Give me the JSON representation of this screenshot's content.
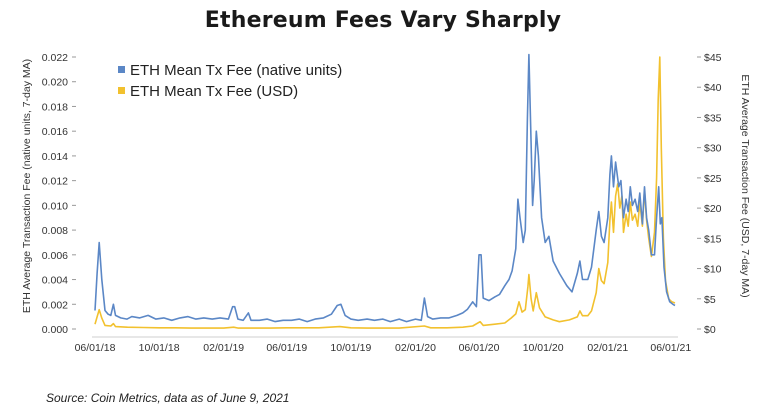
{
  "chart_data": {
    "type": "line",
    "title": "Ethereum Fees Vary Sharply",
    "source": "Source: Coin Metrics, data as of June 9, 2021",
    "x_axis": {
      "type": "date",
      "range": [
        "2018-06-01",
        "2021-06-09"
      ],
      "tick_labels": [
        "06/01/18",
        "10/01/18",
        "02/01/19",
        "06/01/19",
        "10/01/19",
        "02/01/20",
        "06/01/20",
        "10/01/20",
        "02/01/21",
        "06/01/21"
      ],
      "tick_dates": [
        "2018-06-01",
        "2018-10-01",
        "2019-02-01",
        "2019-06-01",
        "2019-10-01",
        "2020-02-01",
        "2020-06-01",
        "2020-10-01",
        "2021-02-01",
        "2021-06-01"
      ]
    },
    "y_left": {
      "label": "ETH Average Transaction Fee (native units, 7-day MA)",
      "range": [
        0,
        0.022
      ],
      "tick_labels": [
        "0.000",
        "0.002",
        "0.004",
        "0.006",
        "0.008",
        "0.010",
        "0.012",
        "0.014",
        "0.016",
        "0.018",
        "0.020",
        "0.022"
      ],
      "tick_values": [
        0,
        0.002,
        0.004,
        0.006,
        0.008,
        0.01,
        0.012,
        0.014,
        0.016,
        0.018,
        0.02,
        0.022
      ]
    },
    "y_right": {
      "label": "ETH Average Transaction Fee (USD, 7-day MA)",
      "range": [
        0,
        45
      ],
      "tick_labels": [
        "$0",
        "$5",
        "$10",
        "$15",
        "$20",
        "$25",
        "$30",
        "$35",
        "$40",
        "$45"
      ],
      "tick_values": [
        0,
        5,
        10,
        15,
        20,
        25,
        30,
        35,
        40,
        45
      ]
    },
    "grid": false,
    "legend_position": "top-left",
    "series": [
      {
        "name": "ETH Mean Tx Fee (native units)",
        "axis": "left",
        "color": "#5b87c6",
        "points": [
          [
            "2018-06-01",
            0.0015
          ],
          [
            "2018-06-05",
            0.0045
          ],
          [
            "2018-06-09",
            0.007
          ],
          [
            "2018-06-14",
            0.004
          ],
          [
            "2018-06-20",
            0.0015
          ],
          [
            "2018-06-26",
            0.0012
          ],
          [
            "2018-07-01",
            0.0011
          ],
          [
            "2018-07-06",
            0.002
          ],
          [
            "2018-07-10",
            0.0011
          ],
          [
            "2018-07-20",
            0.0009
          ],
          [
            "2018-08-01",
            0.0008
          ],
          [
            "2018-08-10",
            0.001
          ],
          [
            "2018-08-25",
            0.0009
          ],
          [
            "2018-09-10",
            0.0011
          ],
          [
            "2018-09-25",
            0.0008
          ],
          [
            "2018-10-10",
            0.0009
          ],
          [
            "2018-10-25",
            0.0007
          ],
          [
            "2018-11-10",
            0.0009
          ],
          [
            "2018-11-25",
            0.001
          ],
          [
            "2018-12-10",
            0.0008
          ],
          [
            "2018-12-25",
            0.0009
          ],
          [
            "2019-01-10",
            0.0008
          ],
          [
            "2019-01-25",
            0.0009
          ],
          [
            "2019-02-10",
            0.0008
          ],
          [
            "2019-02-18",
            0.0018
          ],
          [
            "2019-02-22",
            0.0018
          ],
          [
            "2019-02-28",
            0.0008
          ],
          [
            "2019-03-10",
            0.0007
          ],
          [
            "2019-03-20",
            0.0013
          ],
          [
            "2019-03-25",
            0.0007
          ],
          [
            "2019-04-10",
            0.0007
          ],
          [
            "2019-04-25",
            0.0008
          ],
          [
            "2019-05-10",
            0.0006
          ],
          [
            "2019-05-25",
            0.0007
          ],
          [
            "2019-06-10",
            0.0007
          ],
          [
            "2019-06-25",
            0.0008
          ],
          [
            "2019-07-10",
            0.0006
          ],
          [
            "2019-07-25",
            0.0008
          ],
          [
            "2019-08-10",
            0.0009
          ],
          [
            "2019-08-25",
            0.0012
          ],
          [
            "2019-09-05",
            0.0019
          ],
          [
            "2019-09-12",
            0.002
          ],
          [
            "2019-09-20",
            0.0011
          ],
          [
            "2019-10-01",
            0.0008
          ],
          [
            "2019-10-15",
            0.0007
          ],
          [
            "2019-11-01",
            0.0008
          ],
          [
            "2019-11-15",
            0.0007
          ],
          [
            "2019-12-01",
            0.0008
          ],
          [
            "2019-12-15",
            0.0006
          ],
          [
            "2020-01-01",
            0.0008
          ],
          [
            "2020-01-15",
            0.0006
          ],
          [
            "2020-02-01",
            0.0008
          ],
          [
            "2020-02-12",
            0.0007
          ],
          [
            "2020-02-18",
            0.0025
          ],
          [
            "2020-02-24",
            0.001
          ],
          [
            "2020-03-05",
            0.0008
          ],
          [
            "2020-03-20",
            0.0009
          ],
          [
            "2020-04-05",
            0.0009
          ],
          [
            "2020-04-20",
            0.0011
          ],
          [
            "2020-05-01",
            0.0013
          ],
          [
            "2020-05-10",
            0.0016
          ],
          [
            "2020-05-20",
            0.0022
          ],
          [
            "2020-05-27",
            0.0018
          ],
          [
            "2020-06-01",
            0.006
          ],
          [
            "2020-06-05",
            0.006
          ],
          [
            "2020-06-09",
            0.0025
          ],
          [
            "2020-06-20",
            0.0023
          ],
          [
            "2020-07-01",
            0.0026
          ],
          [
            "2020-07-10",
            0.0028
          ],
          [
            "2020-07-20",
            0.0035
          ],
          [
            "2020-07-28",
            0.004
          ],
          [
            "2020-08-03",
            0.0047
          ],
          [
            "2020-08-10",
            0.0065
          ],
          [
            "2020-08-14",
            0.0105
          ],
          [
            "2020-08-18",
            0.009
          ],
          [
            "2020-08-24",
            0.007
          ],
          [
            "2020-08-28",
            0.008
          ],
          [
            "2020-09-01",
            0.017
          ],
          [
            "2020-09-04",
            0.0222
          ],
          [
            "2020-09-08",
            0.015
          ],
          [
            "2020-09-11",
            0.01
          ],
          [
            "2020-09-14",
            0.012
          ],
          [
            "2020-09-18",
            0.016
          ],
          [
            "2020-09-22",
            0.014
          ],
          [
            "2020-09-28",
            0.009
          ],
          [
            "2020-10-05",
            0.007
          ],
          [
            "2020-10-12",
            0.0075
          ],
          [
            "2020-10-20",
            0.0055
          ],
          [
            "2020-11-01",
            0.0045
          ],
          [
            "2020-11-15",
            0.0035
          ],
          [
            "2020-11-25",
            0.003
          ],
          [
            "2020-12-05",
            0.0045
          ],
          [
            "2020-12-10",
            0.0055
          ],
          [
            "2020-12-15",
            0.004
          ],
          [
            "2020-12-25",
            0.004
          ],
          [
            "2021-01-01",
            0.005
          ],
          [
            "2021-01-10",
            0.008
          ],
          [
            "2021-01-15",
            0.0095
          ],
          [
            "2021-01-20",
            0.0075
          ],
          [
            "2021-01-25",
            0.007
          ],
          [
            "2021-02-01",
            0.009
          ],
          [
            "2021-02-05",
            0.0125
          ],
          [
            "2021-02-08",
            0.014
          ],
          [
            "2021-02-12",
            0.0115
          ],
          [
            "2021-02-16",
            0.0135
          ],
          [
            "2021-02-22",
            0.0115
          ],
          [
            "2021-02-26",
            0.012
          ],
          [
            "2021-03-03",
            0.009
          ],
          [
            "2021-03-08",
            0.0105
          ],
          [
            "2021-03-12",
            0.0095
          ],
          [
            "2021-03-16",
            0.0115
          ],
          [
            "2021-03-20",
            0.01
          ],
          [
            "2021-03-25",
            0.0105
          ],
          [
            "2021-03-30",
            0.0095
          ],
          [
            "2021-04-03",
            0.011
          ],
          [
            "2021-04-08",
            0.0085
          ],
          [
            "2021-04-12",
            0.0115
          ],
          [
            "2021-04-16",
            0.009
          ],
          [
            "2021-04-20",
            0.008
          ],
          [
            "2021-04-25",
            0.006
          ],
          [
            "2021-05-01",
            0.006
          ],
          [
            "2021-05-05",
            0.009
          ],
          [
            "2021-05-09",
            0.0115
          ],
          [
            "2021-05-12",
            0.0085
          ],
          [
            "2021-05-15",
            0.009
          ],
          [
            "2021-05-19",
            0.005
          ],
          [
            "2021-05-24",
            0.003
          ],
          [
            "2021-05-30",
            0.0022
          ],
          [
            "2021-06-05",
            0.002
          ],
          [
            "2021-06-09",
            0.0019
          ]
        ]
      },
      {
        "name": "ETH Mean Tx Fee (USD)",
        "axis": "right",
        "color": "#f2c12e",
        "points": [
          [
            "2018-06-01",
            0.8
          ],
          [
            "2018-06-05",
            2.0
          ],
          [
            "2018-06-09",
            3.2
          ],
          [
            "2018-06-14",
            1.8
          ],
          [
            "2018-06-20",
            0.6
          ],
          [
            "2018-07-01",
            0.5
          ],
          [
            "2018-07-06",
            0.9
          ],
          [
            "2018-07-10",
            0.4
          ],
          [
            "2018-08-01",
            0.3
          ],
          [
            "2018-09-01",
            0.25
          ],
          [
            "2018-10-01",
            0.2
          ],
          [
            "2018-11-01",
            0.2
          ],
          [
            "2018-12-01",
            0.15
          ],
          [
            "2019-01-01",
            0.15
          ],
          [
            "2019-02-01",
            0.15
          ],
          [
            "2019-02-20",
            0.3
          ],
          [
            "2019-03-01",
            0.15
          ],
          [
            "2019-04-01",
            0.15
          ],
          [
            "2019-05-01",
            0.15
          ],
          [
            "2019-06-01",
            0.2
          ],
          [
            "2019-07-01",
            0.2
          ],
          [
            "2019-08-01",
            0.2
          ],
          [
            "2019-09-10",
            0.4
          ],
          [
            "2019-10-01",
            0.2
          ],
          [
            "2019-11-01",
            0.15
          ],
          [
            "2019-12-01",
            0.15
          ],
          [
            "2020-01-01",
            0.15
          ],
          [
            "2020-02-18",
            0.5
          ],
          [
            "2020-03-01",
            0.2
          ],
          [
            "2020-04-01",
            0.2
          ],
          [
            "2020-05-01",
            0.3
          ],
          [
            "2020-05-20",
            0.5
          ],
          [
            "2020-06-03",
            1.2
          ],
          [
            "2020-06-09",
            0.6
          ],
          [
            "2020-07-01",
            0.8
          ],
          [
            "2020-07-20",
            1.0
          ],
          [
            "2020-08-01",
            1.8
          ],
          [
            "2020-08-10",
            2.5
          ],
          [
            "2020-08-16",
            4.5
          ],
          [
            "2020-08-22",
            2.8
          ],
          [
            "2020-08-28",
            3.2
          ],
          [
            "2020-09-02",
            7.0
          ],
          [
            "2020-09-04",
            9.0
          ],
          [
            "2020-09-08",
            5.0
          ],
          [
            "2020-09-12",
            3.0
          ],
          [
            "2020-09-18",
            6.0
          ],
          [
            "2020-09-24",
            3.5
          ],
          [
            "2020-10-05",
            2.0
          ],
          [
            "2020-10-20",
            1.5
          ],
          [
            "2020-11-01",
            1.2
          ],
          [
            "2020-11-20",
            1.5
          ],
          [
            "2020-12-05",
            2.0
          ],
          [
            "2020-12-10",
            3.0
          ],
          [
            "2020-12-15",
            2.2
          ],
          [
            "2020-12-25",
            2.2
          ],
          [
            "2021-01-01",
            3.0
          ],
          [
            "2021-01-10",
            6.0
          ],
          [
            "2021-01-15",
            10.0
          ],
          [
            "2021-01-20",
            8.0
          ],
          [
            "2021-01-25",
            7.5
          ],
          [
            "2021-02-01",
            11.0
          ],
          [
            "2021-02-05",
            18.0
          ],
          [
            "2021-02-08",
            21.0
          ],
          [
            "2021-02-12",
            16.0
          ],
          [
            "2021-02-16",
            22.0
          ],
          [
            "2021-02-20",
            24.0
          ],
          [
            "2021-02-24",
            20.0
          ],
          [
            "2021-02-28",
            22.0
          ],
          [
            "2021-03-03",
            16.0
          ],
          [
            "2021-03-08",
            19.0
          ],
          [
            "2021-03-12",
            17.0
          ],
          [
            "2021-03-16",
            21.0
          ],
          [
            "2021-03-20",
            18.0
          ],
          [
            "2021-03-25",
            19.0
          ],
          [
            "2021-03-30",
            17.0
          ],
          [
            "2021-04-03",
            21.0
          ],
          [
            "2021-04-08",
            17.0
          ],
          [
            "2021-04-12",
            23.0
          ],
          [
            "2021-04-16",
            18.0
          ],
          [
            "2021-04-20",
            15.0
          ],
          [
            "2021-04-25",
            12.0
          ],
          [
            "2021-05-01",
            16.0
          ],
          [
            "2021-05-05",
            25.0
          ],
          [
            "2021-05-08",
            38.0
          ],
          [
            "2021-05-11",
            45.0
          ],
          [
            "2021-05-14",
            30.0
          ],
          [
            "2021-05-18",
            15.0
          ],
          [
            "2021-05-22",
            8.0
          ],
          [
            "2021-05-28",
            5.0
          ],
          [
            "2021-06-03",
            4.5
          ],
          [
            "2021-06-09",
            4.3
          ]
        ]
      }
    ]
  }
}
